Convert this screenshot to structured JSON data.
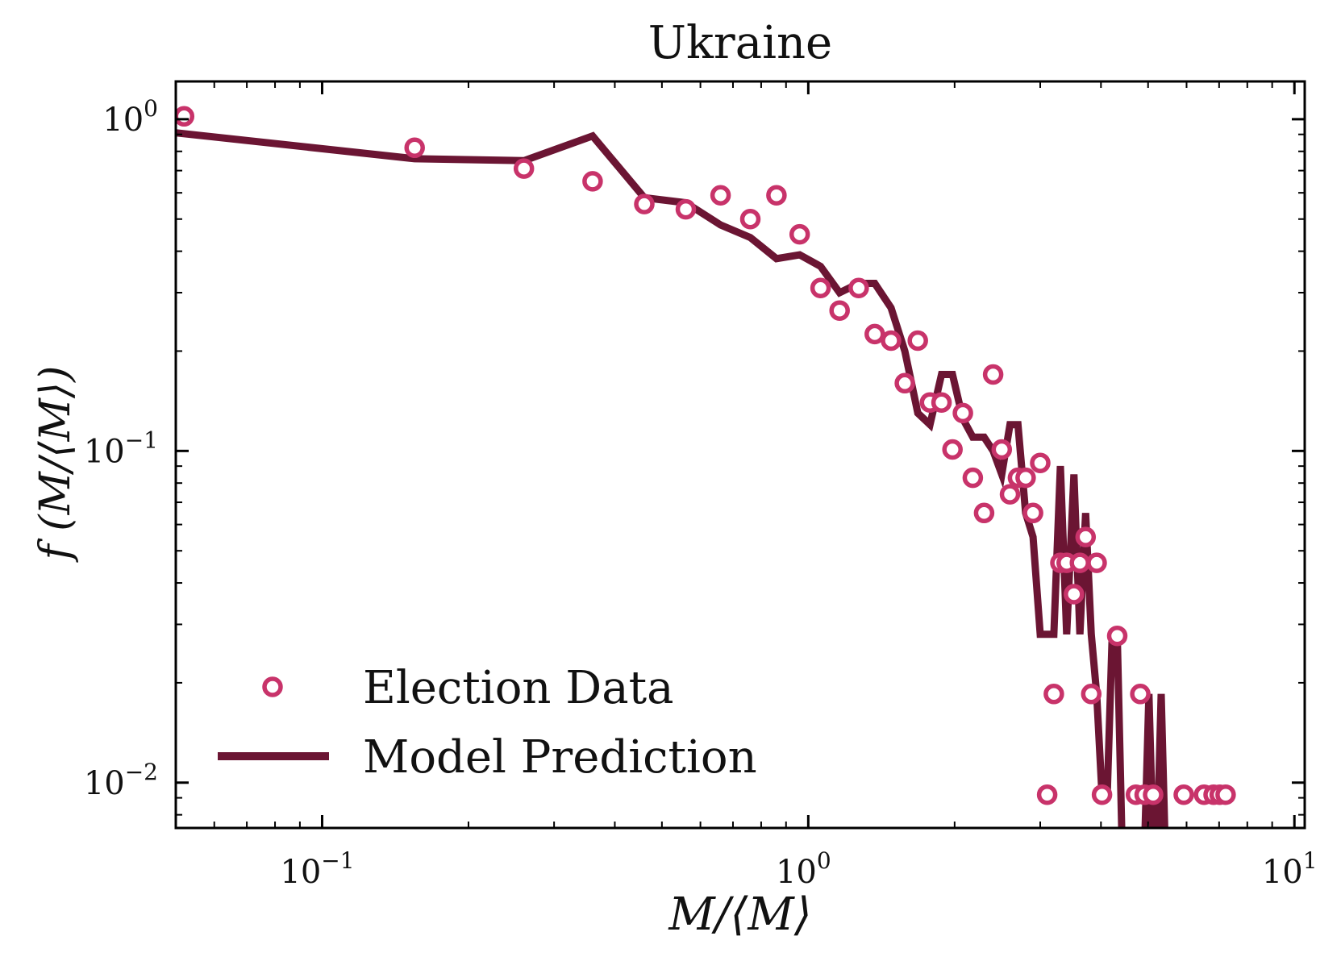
{
  "chart_data": {
    "type": "scatter",
    "title": "Ukraine",
    "xlabel": "M/⟨M⟩",
    "ylabel": "f (M/⟨M⟩)",
    "xscale": "log",
    "yscale": "log",
    "xlim": [
      0.05,
      10.5
    ],
    "ylim": [
      0.0073,
      1.3
    ],
    "x_ticks": [
      {
        "value": 0.1,
        "base": "10",
        "exp": "−1"
      },
      {
        "value": 1,
        "base": "10",
        "exp": "0"
      },
      {
        "value": 10,
        "base": "10",
        "exp": "1"
      }
    ],
    "y_ticks": [
      {
        "value": 0.01,
        "base": "10",
        "exp": "−2"
      },
      {
        "value": 0.1,
        "base": "10",
        "exp": "−1"
      },
      {
        "value": 1,
        "base": "10",
        "exp": "0"
      }
    ],
    "grid": false,
    "legend": "lower-left",
    "colors": {
      "election_data": "#c8336a",
      "model_prediction": "#6b1533"
    },
    "series": [
      {
        "name": "Election Data",
        "kind": "markers",
        "points": [
          [
            0.052,
            1.02
          ],
          [
            0.155,
            0.82
          ],
          [
            0.26,
            0.71
          ],
          [
            0.36,
            0.65
          ],
          [
            0.46,
            0.555
          ],
          [
            0.56,
            0.535
          ],
          [
            0.66,
            0.59
          ],
          [
            0.76,
            0.5
          ],
          [
            0.86,
            0.59
          ],
          [
            0.96,
            0.45
          ],
          [
            1.06,
            0.31
          ],
          [
            1.16,
            0.265
          ],
          [
            1.27,
            0.31
          ],
          [
            1.37,
            0.225
          ],
          [
            1.48,
            0.215
          ],
          [
            1.58,
            0.16
          ],
          [
            1.68,
            0.215
          ],
          [
            1.78,
            0.14
          ],
          [
            1.88,
            0.14
          ],
          [
            1.98,
            0.101
          ],
          [
            2.08,
            0.13
          ],
          [
            2.18,
            0.083
          ],
          [
            2.3,
            0.065
          ],
          [
            2.4,
            0.17
          ],
          [
            2.5,
            0.101
          ],
          [
            2.6,
            0.074
          ],
          [
            2.7,
            0.083
          ],
          [
            2.8,
            0.083
          ],
          [
            2.9,
            0.065
          ],
          [
            3.0,
            0.092
          ],
          [
            3.1,
            0.0092
          ],
          [
            3.2,
            0.0185
          ],
          [
            3.3,
            0.046
          ],
          [
            3.4,
            0.046
          ],
          [
            3.52,
            0.037
          ],
          [
            3.62,
            0.046
          ],
          [
            3.72,
            0.055
          ],
          [
            3.82,
            0.0185
          ],
          [
            3.92,
            0.046
          ],
          [
            4.02,
            0.0092
          ],
          [
            4.32,
            0.0277
          ],
          [
            4.72,
            0.0092
          ],
          [
            4.82,
            0.0185
          ],
          [
            4.92,
            0.0092
          ],
          [
            5.12,
            0.0092
          ],
          [
            5.92,
            0.0092
          ],
          [
            6.52,
            0.0092
          ],
          [
            6.82,
            0.0092
          ],
          [
            7.02,
            0.0092
          ],
          [
            7.22,
            0.0092
          ]
        ]
      },
      {
        "name": "Model Prediction",
        "kind": "line",
        "points": [
          [
            0.05,
            0.91
          ],
          [
            0.155,
            0.76
          ],
          [
            0.26,
            0.75
          ],
          [
            0.36,
            0.89
          ],
          [
            0.46,
            0.58
          ],
          [
            0.56,
            0.56
          ],
          [
            0.66,
            0.48
          ],
          [
            0.76,
            0.44
          ],
          [
            0.86,
            0.38
          ],
          [
            0.96,
            0.39
          ],
          [
            1.06,
            0.36
          ],
          [
            1.16,
            0.3
          ],
          [
            1.27,
            0.32
          ],
          [
            1.37,
            0.32
          ],
          [
            1.48,
            0.27
          ],
          [
            1.58,
            0.2
          ],
          [
            1.68,
            0.13
          ],
          [
            1.78,
            0.12
          ],
          [
            1.88,
            0.17
          ],
          [
            1.98,
            0.17
          ],
          [
            2.08,
            0.125
          ],
          [
            2.18,
            0.11
          ],
          [
            2.3,
            0.11
          ],
          [
            2.4,
            0.1
          ],
          [
            2.5,
            0.085
          ],
          [
            2.6,
            0.12
          ],
          [
            2.7,
            0.12
          ],
          [
            2.8,
            0.065
          ],
          [
            2.9,
            0.055
          ],
          [
            3.0,
            0.028
          ],
          [
            3.1,
            0.028
          ],
          [
            3.2,
            0.028
          ],
          [
            3.3,
            0.09
          ],
          [
            3.4,
            0.028
          ],
          [
            3.52,
            0.085
          ],
          [
            3.62,
            0.028
          ],
          [
            3.72,
            0.065
          ],
          [
            3.82,
            0.028
          ],
          [
            3.92,
            0.0185
          ],
          [
            4.02,
            0.0092
          ],
          [
            4.12,
            0.0092
          ],
          [
            4.22,
            0.028
          ],
          [
            4.32,
            0.028
          ],
          [
            4.42,
            0.0065
          ],
          [
            4.52,
            0.0065
          ],
          [
            4.62,
            0.0065
          ],
          [
            4.72,
            0.0065
          ],
          [
            4.82,
            0.0065
          ],
          [
            4.92,
            0.0065
          ],
          [
            5.02,
            0.0185
          ],
          [
            5.12,
            0.0065
          ],
          [
            5.22,
            0.0065
          ],
          [
            5.32,
            0.0185
          ],
          [
            5.42,
            0.0065
          ]
        ]
      }
    ]
  }
}
